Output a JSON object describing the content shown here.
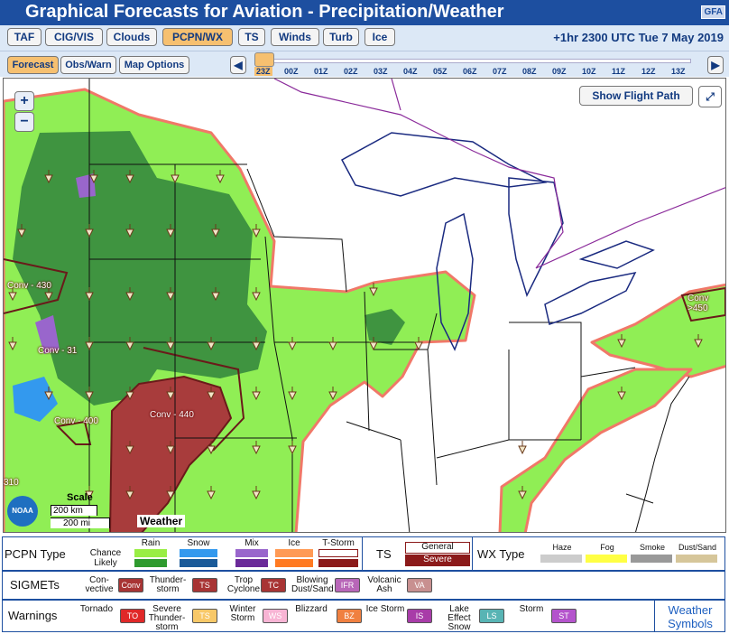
{
  "header": {
    "title": "Graphical Forecasts for Aviation - Precipitation/Weather",
    "badge": "GFA"
  },
  "tabs": [
    "TAF",
    "CIG/VIS",
    "Clouds",
    "PCPN/WX",
    "TS",
    "Winds",
    "Turb",
    "Ice"
  ],
  "active_tab": 3,
  "valid_time": "+1hr 2300 UTC Tue 7 May 2019",
  "subtabs": [
    "Forecast",
    "Obs/Warn",
    "Map Options"
  ],
  "active_subtab": 0,
  "timeline": [
    "23Z",
    "00Z",
    "01Z",
    "02Z",
    "03Z",
    "04Z",
    "05Z",
    "06Z",
    "07Z",
    "08Z",
    "09Z",
    "10Z",
    "11Z",
    "12Z",
    "13Z"
  ],
  "map": {
    "zoom_in": "+",
    "zoom_out": "−",
    "flight_path_button": "Show Flight Path",
    "labels": [
      "Conv - 430",
      "Conv - 31",
      "Conv - 400",
      "Conv - 440",
      "Conv >450",
      "310"
    ],
    "scale_title": "Scale",
    "scale_km": "200 km",
    "scale_mi": "200 mi",
    "logo": "NOAA",
    "layer": "Weather"
  },
  "legend": {
    "pcpn": {
      "label": "PCPN Type",
      "chance": "Chance",
      "likely": "Likely",
      "types": [
        {
          "name": "Rain",
          "chance_color": "#99ee44",
          "likely_color": "#2e9a2e"
        },
        {
          "name": "Snow",
          "chance_color": "#3399ee",
          "likely_color": "#1a5a99"
        },
        {
          "name": "Mix",
          "chance_color": "#9966cc",
          "likely_color": "#6a2a99"
        },
        {
          "name": "Ice",
          "chance_color": "#ff9a55",
          "likely_color": "#ff7a22"
        },
        {
          "name": "T-Storm",
          "chance_color": "#ffffff",
          "likely_color": "#8b1a1a"
        }
      ]
    },
    "ts": {
      "label": "TS",
      "general": "General",
      "severe": "Severe"
    },
    "wx": {
      "label": "WX Type",
      "types": [
        {
          "name": "Haze",
          "color": "#cccccc"
        },
        {
          "name": "Fog",
          "color": "#ffff44"
        },
        {
          "name": "Smoke",
          "color": "#999999"
        },
        {
          "name": "Dust/Sand",
          "color": "#d6c69a"
        }
      ]
    },
    "sigmets": {
      "label": "SIGMETs",
      "items": [
        {
          "name": "Con-vective",
          "code": "Conv",
          "color": "#a83434"
        },
        {
          "name": "Thunder-storm",
          "code": "TS",
          "color": "#a83434"
        },
        {
          "name": "Trop Cyclone",
          "code": "TC",
          "color": "#a83434"
        },
        {
          "name": "Blowing Dust/Sand",
          "code": "IFR",
          "color": "#b866b8"
        },
        {
          "name": "Volcanic Ash",
          "code": "VA",
          "color": "#c89090"
        }
      ]
    },
    "warnings": {
      "label": "Warnings",
      "items": [
        {
          "name": "Tornado",
          "code": "TO",
          "color": "#e02828"
        },
        {
          "name": "Severe Thunder-storm",
          "code": "TS",
          "color": "#f8c868"
        },
        {
          "name": "Winter Storm",
          "code": "WS",
          "color": "#f8b4d4"
        },
        {
          "name": "Blizzard",
          "code": "BZ",
          "color": "#f08040"
        },
        {
          "name": "Ice Storm",
          "code": "IS",
          "color": "#a83ca8"
        },
        {
          "name": "Lake Effect Snow",
          "code": "LS",
          "color": "#58b4b4"
        },
        {
          "name": "Storm",
          "code": "ST",
          "color": "#b454cc"
        }
      ],
      "link": "Weather Symbols"
    }
  }
}
